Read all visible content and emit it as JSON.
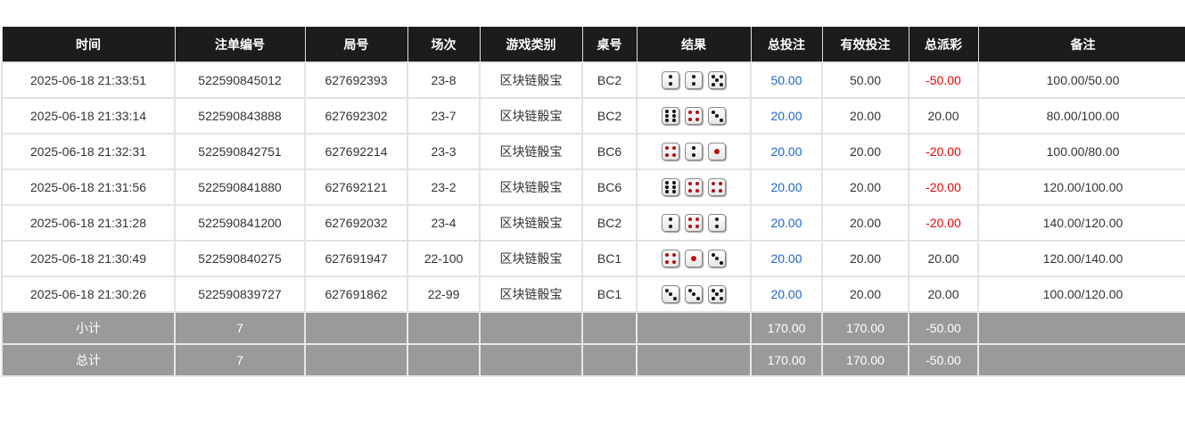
{
  "headers": [
    "时间",
    "注单编号",
    "局号",
    "场次",
    "游戏类别",
    "桌号",
    "结果",
    "总投注",
    "有效投注",
    "总派彩",
    "备注"
  ],
  "rows": [
    {
      "time": "2025-06-18 21:33:51",
      "bet_id": "522590845012",
      "round": "627692393",
      "session": "23-8",
      "game": "区块链骰宝",
      "table": "BC2",
      "dice": [
        2,
        2,
        5
      ],
      "total_bet": "50.00",
      "valid_bet": "50.00",
      "payout": "-50.00",
      "note": "100.00/50.00"
    },
    {
      "time": "2025-06-18 21:33:14",
      "bet_id": "522590843888",
      "round": "627692302",
      "session": "23-7",
      "game": "区块链骰宝",
      "table": "BC2",
      "dice": [
        6,
        4,
        3
      ],
      "total_bet": "20.00",
      "valid_bet": "20.00",
      "payout": "20.00",
      "note": "80.00/100.00"
    },
    {
      "time": "2025-06-18 21:32:31",
      "bet_id": "522590842751",
      "round": "627692214",
      "session": "23-3",
      "game": "区块链骰宝",
      "table": "BC6",
      "dice": [
        4,
        2,
        1
      ],
      "total_bet": "20.00",
      "valid_bet": "20.00",
      "payout": "-20.00",
      "note": "100.00/80.00"
    },
    {
      "time": "2025-06-18 21:31:56",
      "bet_id": "522590841880",
      "round": "627692121",
      "session": "23-2",
      "game": "区块链骰宝",
      "table": "BC6",
      "dice": [
        6,
        4,
        4
      ],
      "total_bet": "20.00",
      "valid_bet": "20.00",
      "payout": "-20.00",
      "note": "120.00/100.00"
    },
    {
      "time": "2025-06-18 21:31:28",
      "bet_id": "522590841200",
      "round": "627692032",
      "session": "23-4",
      "game": "区块链骰宝",
      "table": "BC2",
      "dice": [
        2,
        4,
        2
      ],
      "total_bet": "20.00",
      "valid_bet": "20.00",
      "payout": "-20.00",
      "note": "140.00/120.00"
    },
    {
      "time": "2025-06-18 21:30:49",
      "bet_id": "522590840275",
      "round": "627691947",
      "session": "22-100",
      "game": "区块链骰宝",
      "table": "BC1",
      "dice": [
        4,
        1,
        3
      ],
      "total_bet": "20.00",
      "valid_bet": "20.00",
      "payout": "20.00",
      "note": "120.00/140.00"
    },
    {
      "time": "2025-06-18 21:30:26",
      "bet_id": "522590839727",
      "round": "627691862",
      "session": "22-99",
      "game": "区块链骰宝",
      "table": "BC1",
      "dice": [
        3,
        3,
        5
      ],
      "total_bet": "20.00",
      "valid_bet": "20.00",
      "payout": "20.00",
      "note": "100.00/120.00"
    }
  ],
  "footer": [
    {
      "label": "小计",
      "count": "7",
      "total_bet": "170.00",
      "valid_bet": "170.00",
      "payout": "-50.00"
    },
    {
      "label": "总计",
      "count": "7",
      "total_bet": "170.00",
      "valid_bet": "170.00",
      "payout": "-50.00"
    }
  ],
  "colors": {
    "header_bg": "#1c1c1c",
    "footer_bg": "#9a9a9a",
    "bet_blue": "#1a66cc",
    "loss_red": "#ee0000"
  }
}
